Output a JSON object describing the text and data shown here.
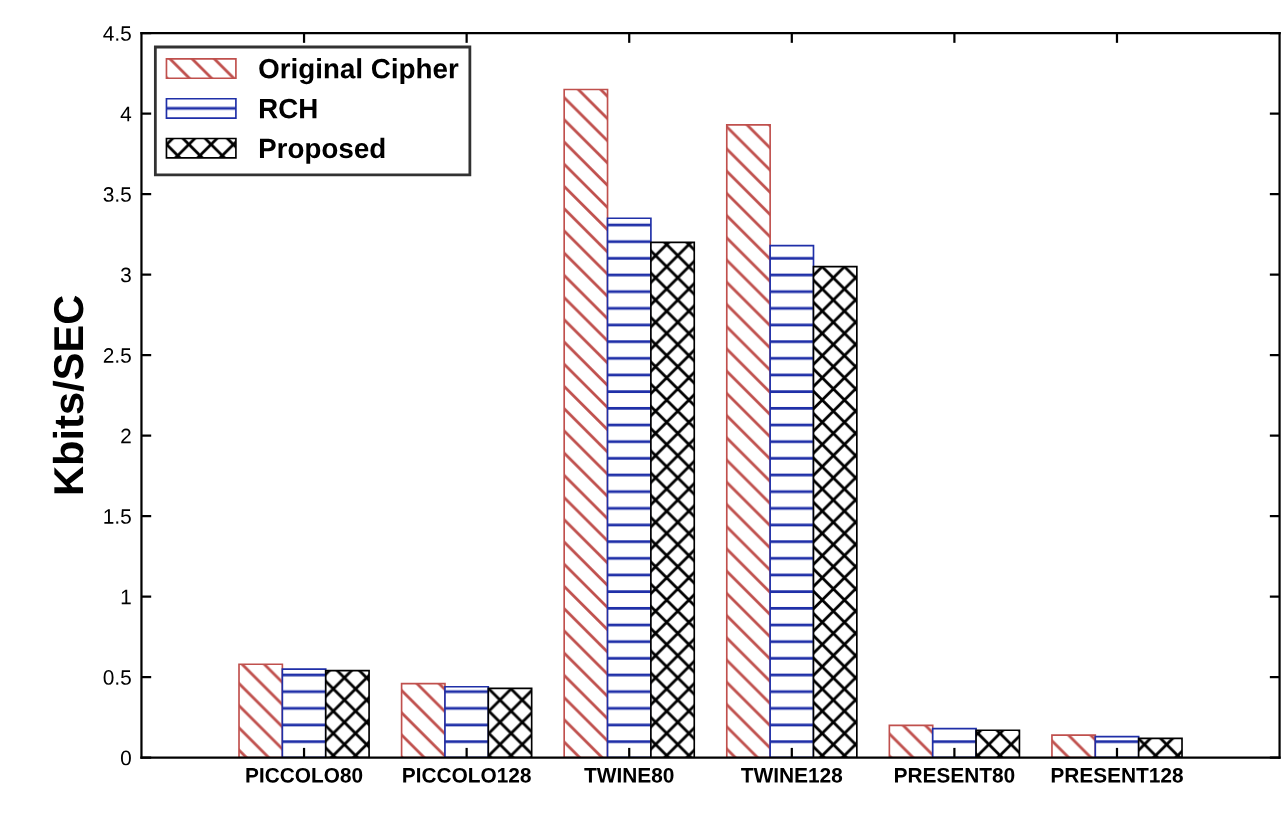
{
  "chart_data": {
    "type": "bar",
    "ylabel": "Kbits/SEC",
    "categories": [
      "PICCOLO80",
      "PICCOLO128",
      "TWINE80",
      "TWINE128",
      "PRESENT80",
      "PRESENT128"
    ],
    "series": [
      {
        "name": "Original Cipher",
        "color": "#c0504d",
        "values": [
          0.58,
          0.46,
          4.15,
          3.93,
          0.2,
          0.14
        ]
      },
      {
        "name": "RCH",
        "color": "#1f2fa8",
        "values": [
          0.55,
          0.44,
          3.35,
          3.18,
          0.18,
          0.13
        ]
      },
      {
        "name": "Proposed",
        "color": "#000000",
        "values": [
          0.54,
          0.43,
          3.2,
          3.05,
          0.17,
          0.12
        ]
      }
    ],
    "ylim": [
      0,
      4.5
    ],
    "yticks": [
      0,
      0.5,
      1,
      1.5,
      2,
      2.5,
      3,
      3.5,
      4,
      4.5
    ],
    "grid": false,
    "legend": "top left"
  }
}
